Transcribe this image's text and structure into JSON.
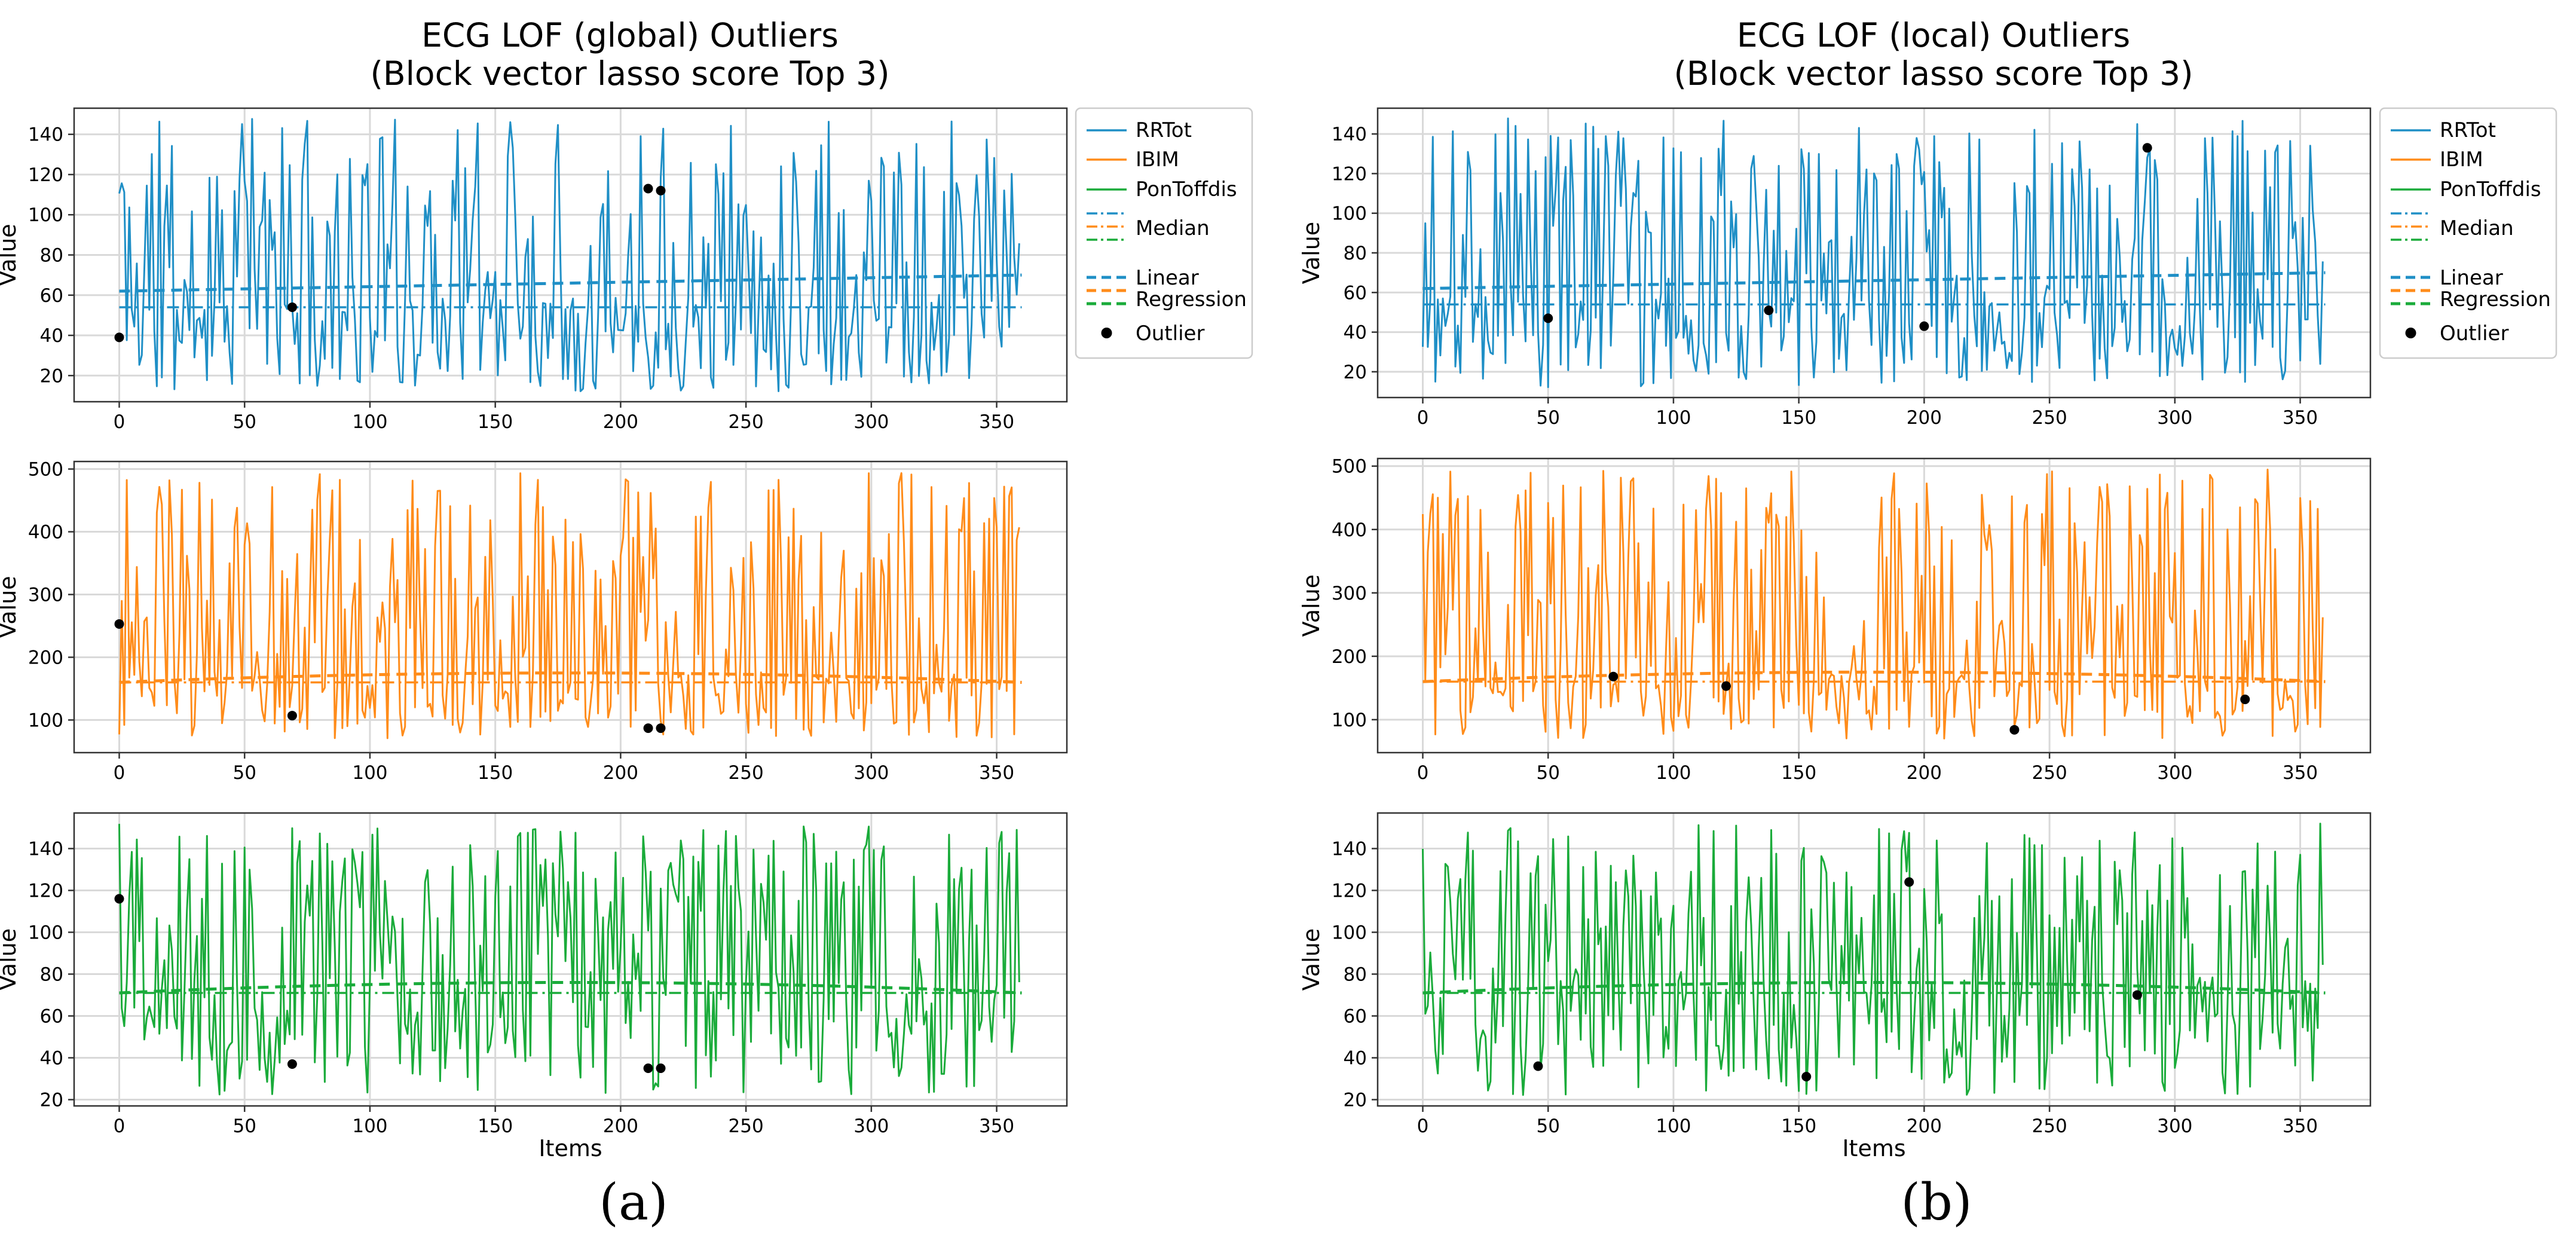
{
  "chart_data": [
    {
      "type": "line",
      "panel": "a",
      "caption": "(a)",
      "title_lines": [
        "ECG LOF (global)  Outliers",
        "(Block vector lasso score Top 3)"
      ],
      "xlabel": "Items",
      "xlim": [
        -18,
        378
      ],
      "xticks": [
        0,
        50,
        100,
        150,
        200,
        250,
        300,
        350
      ],
      "legend": {
        "placement": "right",
        "entries": [
          "RRTot",
          "IBIM",
          "PonToffdis",
          "Median",
          "Linear",
          "Regression",
          "Outlier"
        ]
      },
      "subplots": [
        {
          "series": "RRTot",
          "color": "#1f8fc6",
          "ylabel": "Value",
          "ylim": [
            7,
            153
          ],
          "yticks": [
            20,
            40,
            60,
            80,
            100,
            120,
            140
          ],
          "median": 54,
          "regression": {
            "start": 62,
            "mid": 66,
            "end": 70
          },
          "outliers": [
            {
              "x": 0,
              "y": 39
            },
            {
              "x": 69,
              "y": 54
            },
            {
              "x": 211,
              "y": 113
            },
            {
              "x": 216,
              "y": 112
            }
          ]
        },
        {
          "series": "IBIM",
          "color": "#ff8c1a",
          "ylabel": "Value",
          "ylim": [
            48,
            512
          ],
          "yticks": [
            100,
            200,
            300,
            400,
            500
          ],
          "median": 160,
          "regression": {
            "start": 160,
            "mid": 175,
            "end": 160
          },
          "outliers": [
            {
              "x": 0,
              "y": 253
            },
            {
              "x": 69,
              "y": 107
            },
            {
              "x": 211,
              "y": 87
            },
            {
              "x": 216,
              "y": 87
            }
          ]
        },
        {
          "series": "PonToffdis",
          "color": "#1aab3a",
          "ylabel": "Value",
          "ylim": [
            17,
            157
          ],
          "yticks": [
            20,
            40,
            60,
            80,
            100,
            120,
            140
          ],
          "median": 71,
          "regression": {
            "start": 71,
            "mid": 76,
            "end": 71
          },
          "outliers": [
            {
              "x": 0,
              "y": 116
            },
            {
              "x": 69,
              "y": 37
            },
            {
              "x": 211,
              "y": 35
            },
            {
              "x": 216,
              "y": 35
            }
          ]
        }
      ]
    },
    {
      "type": "line",
      "panel": "b",
      "caption": "(b)",
      "title_lines": [
        "ECG LOF (local) Outliers",
        "(Block vector lasso score Top 3)"
      ],
      "xlabel": "Items",
      "xlim": [
        -18,
        378
      ],
      "xticks": [
        0,
        50,
        100,
        150,
        200,
        250,
        300,
        350
      ],
      "legend": {
        "placement": "right",
        "entries": [
          "RRTot",
          "IBIM",
          "PonToffdis",
          "Median",
          "Linear",
          "Regression",
          "Outlier"
        ]
      },
      "subplots": [
        {
          "series": "RRTot",
          "color": "#1f8fc6",
          "ylabel": "Value",
          "ylim": [
            7,
            153
          ],
          "yticks": [
            20,
            40,
            60,
            80,
            100,
            120,
            140
          ],
          "median": 54,
          "regression": {
            "start": 62,
            "mid": 66,
            "end": 70
          },
          "outliers": [
            {
              "x": 50,
              "y": 47
            },
            {
              "x": 138,
              "y": 51
            },
            {
              "x": 200,
              "y": 43
            },
            {
              "x": 289,
              "y": 133
            }
          ]
        },
        {
          "series": "IBIM",
          "color": "#ff8c1a",
          "ylabel": "Value",
          "ylim": [
            48,
            512
          ],
          "yticks": [
            100,
            200,
            300,
            400,
            500
          ],
          "median": 160,
          "regression": {
            "start": 160,
            "mid": 175,
            "end": 160
          },
          "outliers": [
            {
              "x": 76,
              "y": 168
            },
            {
              "x": 121,
              "y": 153
            },
            {
              "x": 236,
              "y": 84
            },
            {
              "x": 328,
              "y": 132
            }
          ]
        },
        {
          "series": "PonToffdis",
          "color": "#1aab3a",
          "ylabel": "Value",
          "ylim": [
            17,
            157
          ],
          "yticks": [
            20,
            40,
            60,
            80,
            100,
            120,
            140
          ],
          "median": 71,
          "regression": {
            "start": 71,
            "mid": 76,
            "end": 71
          },
          "outliers": [
            {
              "x": 46,
              "y": 36
            },
            {
              "x": 153,
              "y": 31
            },
            {
              "x": 194,
              "y": 124
            },
            {
              "x": 285,
              "y": 70
            }
          ]
        }
      ]
    }
  ]
}
